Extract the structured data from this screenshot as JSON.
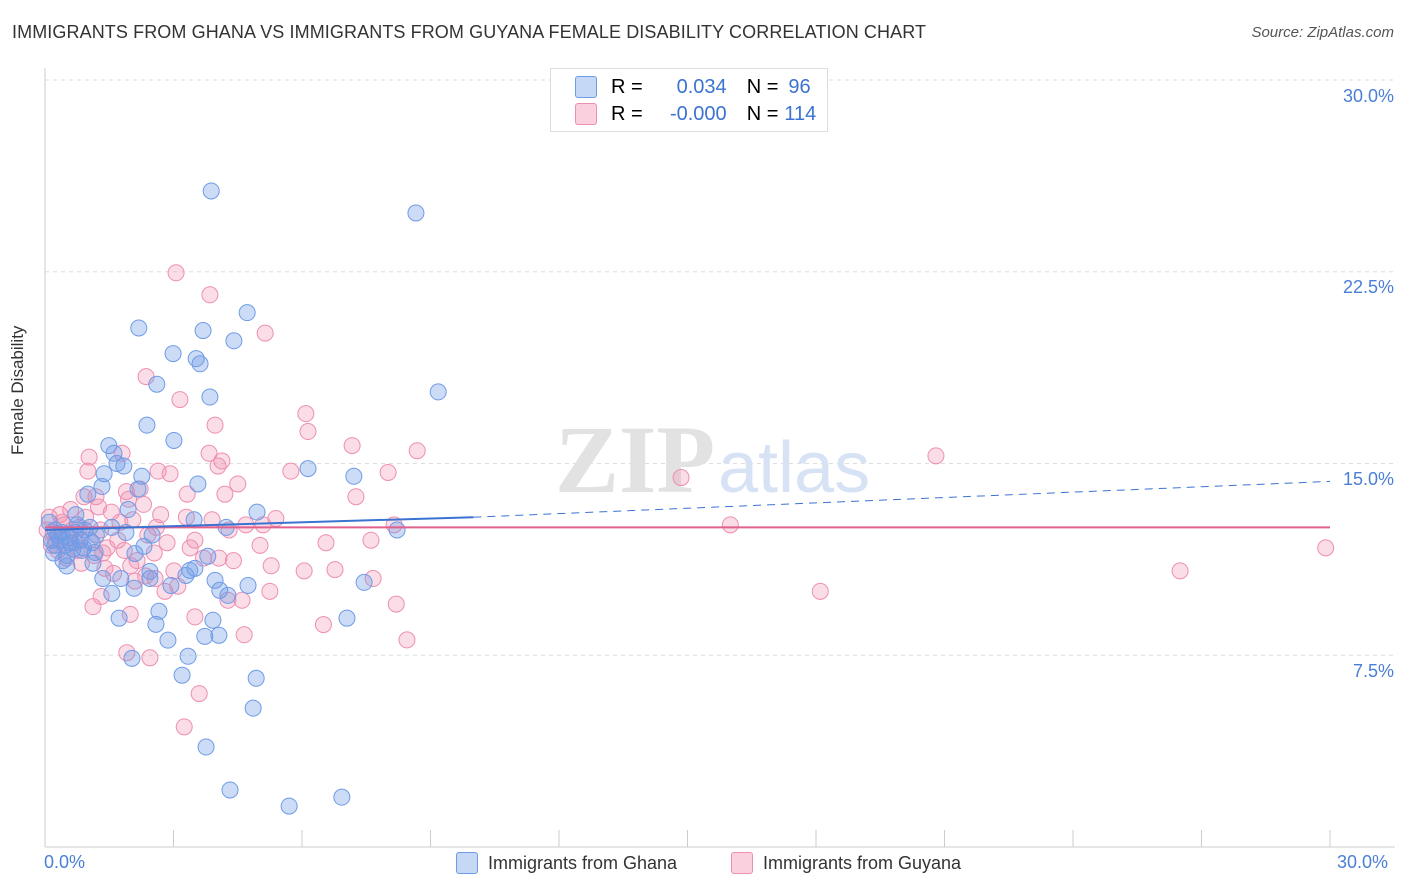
{
  "title": "IMMIGRANTS FROM GHANA VS IMMIGRANTS FROM GUYANA FEMALE DISABILITY CORRELATION CHART",
  "source": "Source: ZipAtlas.com",
  "watermark": {
    "zip": "ZIP",
    "atlas": "atlas"
  },
  "legend": {
    "r_label": "R =",
    "n_label": "N =",
    "ghana": {
      "r": "0.034",
      "n": "96"
    },
    "guyana": {
      "r": "-0.000",
      "n": "114"
    }
  },
  "chart_data": {
    "type": "scatter",
    "title": "IMMIGRANTS FROM GHANA VS IMMIGRANTS FROM GUYANA FEMALE DISABILITY CORRELATION CHART",
    "xlabel": "",
    "ylabel": "Female Disability",
    "xlim": [
      0,
      30
    ],
    "ylim": [
      0,
      30
    ],
    "x_ticks": [
      "0.0%",
      "30.0%"
    ],
    "y_ticks": [
      "30.0%",
      "22.5%",
      "15.0%",
      "7.5%"
    ],
    "y_tick_values": [
      30,
      22.5,
      15,
      7.5
    ],
    "grid": true,
    "legend_placement": "top-center",
    "colors": {
      "ghana": "#6f9be6",
      "guyana": "#ee8fb0",
      "ghana_line": "#3b73d1",
      "guyana_line": "#e0608e"
    },
    "series": [
      {
        "name": "Immigrants from Ghana",
        "trend": {
          "solid": [
            [
              0,
              12.4
            ],
            [
              10,
              12.9
            ]
          ],
          "dashed_to": [
            30,
            14.3
          ]
        },
        "points": [
          [
            3.88,
            25.66
          ],
          [
            8.66,
            24.8
          ],
          [
            2.19,
            20.3
          ],
          [
            4.72,
            20.9
          ],
          [
            3.69,
            20.2
          ],
          [
            4.41,
            19.8
          ],
          [
            2.99,
            19.3
          ],
          [
            3.53,
            19.1
          ],
          [
            3.62,
            18.9
          ],
          [
            2.61,
            18.1
          ],
          [
            9.18,
            17.8
          ],
          [
            3.85,
            17.6
          ],
          [
            2.38,
            16.5
          ],
          [
            3.01,
            15.9
          ],
          [
            1.49,
            15.7
          ],
          [
            1.61,
            15.4
          ],
          [
            6.14,
            14.8
          ],
          [
            7.21,
            14.5
          ],
          [
            1.68,
            15.0
          ],
          [
            1.84,
            14.9
          ],
          [
            1.38,
            14.6
          ],
          [
            2.26,
            14.5
          ],
          [
            1.33,
            14.1
          ],
          [
            2.17,
            14.0
          ],
          [
            3.57,
            14.2
          ],
          [
            1.0,
            13.8
          ],
          [
            4.95,
            13.1
          ],
          [
            1.94,
            13.2
          ],
          [
            3.48,
            12.8
          ],
          [
            0.72,
            13.0
          ],
          [
            4.23,
            12.5
          ],
          [
            8.22,
            12.4
          ],
          [
            1.56,
            12.5
          ],
          [
            1.89,
            12.3
          ],
          [
            0.1,
            12.7
          ],
          [
            0.23,
            12.4
          ],
          [
            0.35,
            12.0
          ],
          [
            0.47,
            11.8
          ],
          [
            0.58,
            12.1
          ],
          [
            0.7,
            12.3
          ],
          [
            0.82,
            12.0
          ],
          [
            0.93,
            12.4
          ],
          [
            1.05,
            12.5
          ],
          [
            0.23,
            11.8
          ],
          [
            0.51,
            11.4
          ],
          [
            0.42,
            11.2
          ],
          [
            0.51,
            10.99
          ],
          [
            0.65,
            11.65
          ],
          [
            0.86,
            11.6
          ],
          [
            1.17,
            11.52
          ],
          [
            1.12,
            11.1
          ],
          [
            1.35,
            10.5
          ],
          [
            1.56,
            9.92
          ],
          [
            1.73,
            8.95
          ],
          [
            2.03,
            7.38
          ],
          [
            1.77,
            10.5
          ],
          [
            2.1,
            11.48
          ],
          [
            2.31,
            11.76
          ],
          [
            2.08,
            10.12
          ],
          [
            2.45,
            10.78
          ],
          [
            2.45,
            10.5
          ],
          [
            2.66,
            9.22
          ],
          [
            2.59,
            8.71
          ],
          [
            2.87,
            8.09
          ],
          [
            2.94,
            10.23
          ],
          [
            3.29,
            10.62
          ],
          [
            3.38,
            10.82
          ],
          [
            3.34,
            7.46
          ],
          [
            3.2,
            6.72
          ],
          [
            3.5,
            10.9
          ],
          [
            3.8,
            11.37
          ],
          [
            3.97,
            10.43
          ],
          [
            4.08,
            10.04
          ],
          [
            3.92,
            8.87
          ],
          [
            4.06,
            8.28
          ],
          [
            4.74,
            10.23
          ],
          [
            4.93,
            6.6
          ],
          [
            4.86,
            5.43
          ],
          [
            3.76,
            3.91
          ],
          [
            4.32,
            2.23
          ],
          [
            5.7,
            1.6
          ],
          [
            6.93,
            1.95
          ],
          [
            7.05,
            8.95
          ],
          [
            7.45,
            10.35
          ],
          [
            4.27,
            9.84
          ],
          [
            3.73,
            8.24
          ],
          [
            0.3,
            12.2
          ],
          [
            0.6,
            11.9
          ],
          [
            0.9,
            11.7
          ],
          [
            1.2,
            12.2
          ],
          [
            0.15,
            12.0
          ],
          [
            0.4,
            12.3
          ],
          [
            0.75,
            12.6
          ],
          [
            1.1,
            11.9
          ],
          [
            0.2,
            11.5
          ],
          [
            2.5,
            12.2
          ]
        ]
      },
      {
        "name": "Immigrants from Guyana",
        "trend": {
          "solid": [
            [
              0,
              12.5
            ],
            [
              30,
              12.5
            ]
          ]
        },
        "points": [
          [
            3.06,
            22.46
          ],
          [
            3.85,
            21.6
          ],
          [
            5.14,
            20.1
          ],
          [
            2.36,
            18.4
          ],
          [
            3.15,
            17.5
          ],
          [
            6.09,
            16.95
          ],
          [
            6.14,
            16.25
          ],
          [
            3.97,
            16.5
          ],
          [
            7.17,
            15.7
          ],
          [
            20.8,
            15.3
          ],
          [
            8.69,
            15.5
          ],
          [
            3.83,
            15.4
          ],
          [
            4.13,
            15.1
          ],
          [
            4.04,
            14.9
          ],
          [
            5.74,
            14.7
          ],
          [
            8.01,
            14.65
          ],
          [
            14.85,
            14.45
          ],
          [
            2.92,
            14.6
          ],
          [
            2.64,
            14.7
          ],
          [
            1.0,
            14.7
          ],
          [
            1.03,
            15.25
          ],
          [
            1.8,
            15.4
          ],
          [
            4.5,
            14.2
          ],
          [
            3.32,
            13.8
          ],
          [
            4.2,
            13.8
          ],
          [
            7.26,
            13.7
          ],
          [
            2.22,
            14.0
          ],
          [
            0.91,
            13.7
          ],
          [
            1.19,
            13.7
          ],
          [
            16.0,
            12.6
          ],
          [
            26.5,
            10.8
          ],
          [
            29.9,
            11.7
          ],
          [
            18.1,
            10.0
          ],
          [
            8.45,
            8.1
          ],
          [
            8.2,
            9.5
          ],
          [
            6.5,
            8.7
          ],
          [
            4.65,
            8.3
          ],
          [
            5.25,
            10.0
          ],
          [
            3.6,
            6.0
          ],
          [
            3.25,
            4.7
          ],
          [
            2.45,
            7.4
          ],
          [
            1.91,
            7.6
          ],
          [
            1.99,
            9.1
          ],
          [
            1.12,
            9.4
          ],
          [
            1.31,
            9.8
          ],
          [
            3.5,
            9.0
          ],
          [
            4.27,
            9.65
          ],
          [
            4.6,
            9.65
          ],
          [
            7.66,
            10.5
          ],
          [
            6.77,
            10.85
          ],
          [
            6.05,
            10.8
          ],
          [
            5.28,
            11.0
          ],
          [
            5.02,
            11.8
          ],
          [
            6.56,
            11.9
          ],
          [
            7.61,
            12.0
          ],
          [
            5.39,
            12.85
          ],
          [
            4.69,
            12.6
          ],
          [
            5.09,
            12.6
          ],
          [
            8.15,
            12.6
          ],
          [
            4.06,
            11.3
          ],
          [
            3.39,
            11.7
          ],
          [
            3.01,
            10.8
          ],
          [
            3.1,
            10.2
          ],
          [
            2.57,
            10.5
          ],
          [
            0.1,
            12.9
          ],
          [
            0.2,
            12.3
          ],
          [
            0.3,
            11.6
          ],
          [
            0.45,
            12.6
          ],
          [
            0.55,
            12.1
          ],
          [
            0.6,
            13.2
          ],
          [
            0.7,
            11.9
          ],
          [
            0.8,
            12.5
          ],
          [
            0.95,
            12.9
          ],
          [
            1.05,
            12.0
          ],
          [
            1.15,
            11.4
          ],
          [
            1.3,
            12.4
          ],
          [
            1.45,
            11.7
          ],
          [
            1.55,
            13.1
          ],
          [
            1.7,
            12.0
          ],
          [
            1.85,
            11.6
          ],
          [
            1.95,
            13.6
          ],
          [
            2.05,
            12.8
          ],
          [
            2.15,
            11.2
          ],
          [
            2.3,
            13.4
          ],
          [
            2.4,
            12.2
          ],
          [
            2.55,
            11.5
          ],
          [
            2.7,
            13.0
          ],
          [
            2.85,
            11.9
          ],
          [
            1.6,
            10.7
          ],
          [
            1.4,
            10.9
          ],
          [
            0.85,
            11.1
          ],
          [
            2.1,
            10.4
          ],
          [
            0.35,
            13.0
          ],
          [
            0.5,
            11.3
          ],
          [
            0.25,
            12.0
          ],
          [
            1.25,
            13.3
          ],
          [
            1.75,
            12.7
          ],
          [
            2.0,
            11.0
          ],
          [
            2.6,
            12.5
          ],
          [
            3.5,
            12.0
          ],
          [
            3.7,
            11.3
          ],
          [
            3.9,
            12.8
          ],
          [
            4.3,
            12.4
          ],
          [
            4.4,
            11.2
          ],
          [
            2.8,
            10.0
          ],
          [
            1.35,
            11.5
          ],
          [
            0.65,
            12.4
          ],
          [
            0.15,
            11.8
          ],
          [
            0.05,
            12.4
          ],
          [
            1.9,
            13.9
          ],
          [
            2.35,
            10.6
          ],
          [
            3.3,
            12.9
          ],
          [
            0.4,
            12.7
          ],
          [
            0.75,
            11.6
          ]
        ]
      }
    ]
  },
  "bottom_legend": [
    "Immigrants from Ghana",
    "Immigrants from Guyana"
  ]
}
